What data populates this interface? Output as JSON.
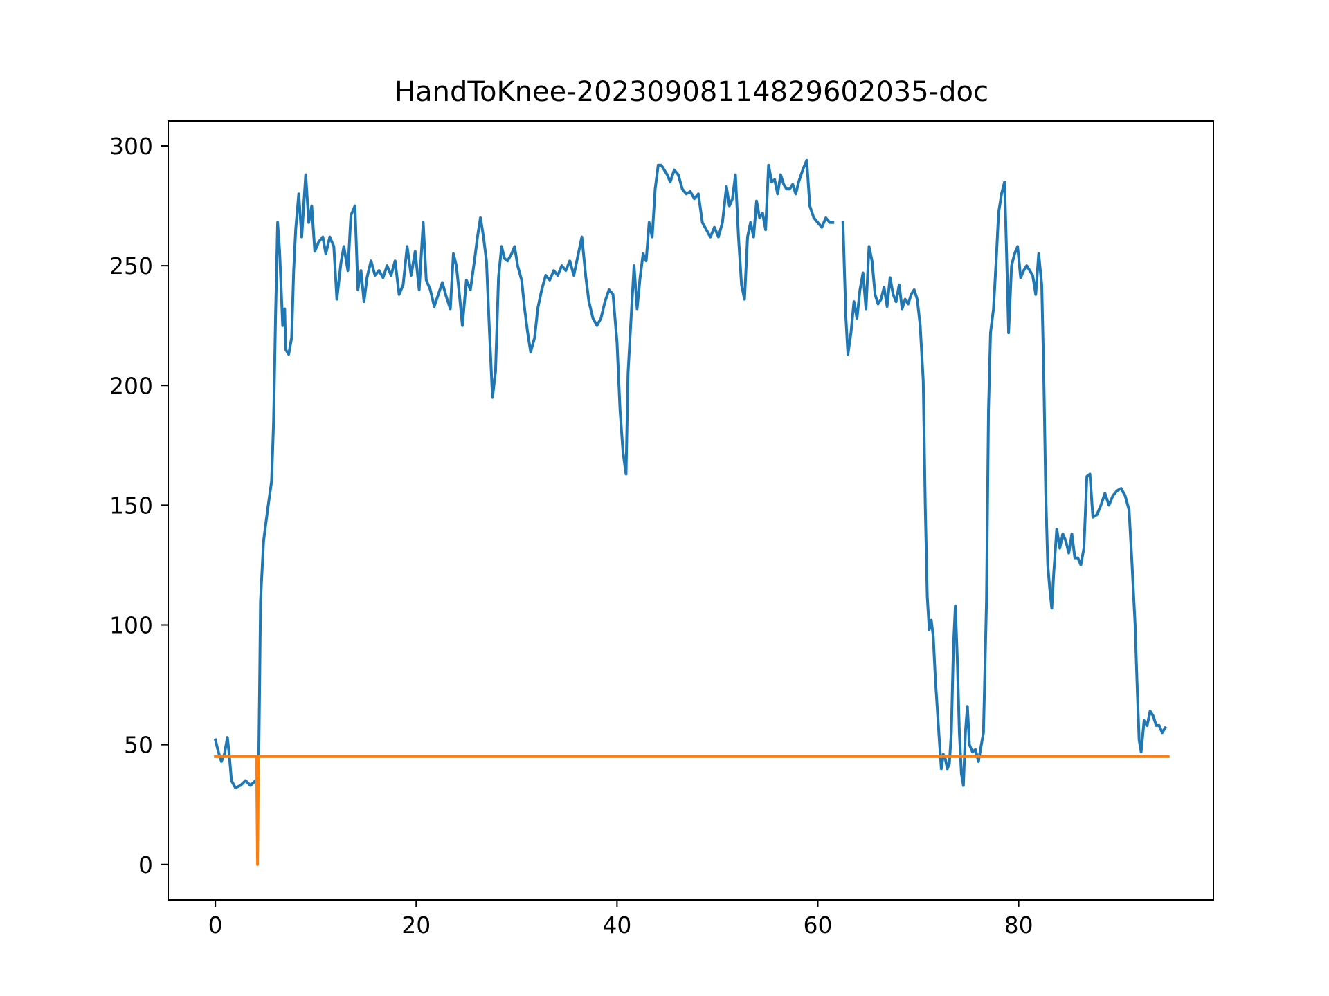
{
  "chart_data": {
    "type": "line",
    "title": "HandToKnee-20230908114829602035-doc",
    "xlabel": "",
    "ylabel": "",
    "xlim": [
      -4.7,
      99.4
    ],
    "ylim": [
      -14.8,
      310.4
    ],
    "grid": false,
    "x_ticks": [
      0,
      20,
      40,
      60,
      80
    ],
    "y_ticks": [
      0,
      50,
      100,
      150,
      200,
      250,
      300
    ],
    "series": [
      {
        "color": "#1f77b4",
        "points": [
          [
            0.0,
            52
          ],
          [
            0.3,
            47
          ],
          [
            0.6,
            43
          ],
          [
            0.9,
            46
          ],
          [
            1.2,
            53
          ],
          [
            1.4,
            45
          ],
          [
            1.6,
            35
          ],
          [
            2.0,
            32
          ],
          [
            2.5,
            33
          ],
          [
            3.0,
            35
          ],
          [
            3.5,
            33
          ],
          [
            4.0,
            35
          ],
          [
            4.3,
            36
          ],
          [
            4.4,
            72
          ],
          [
            4.5,
            110
          ],
          [
            4.8,
            135
          ],
          [
            5.2,
            148
          ],
          [
            5.6,
            160
          ],
          [
            5.8,
            185
          ],
          [
            6.0,
            230
          ],
          [
            6.2,
            268
          ],
          [
            6.4,
            256
          ],
          [
            6.7,
            225
          ],
          [
            6.9,
            232
          ],
          [
            7.0,
            215
          ],
          [
            7.3,
            213
          ],
          [
            7.6,
            220
          ],
          [
            7.8,
            248
          ],
          [
            8.0,
            265
          ],
          [
            8.3,
            280
          ],
          [
            8.6,
            262
          ],
          [
            9.0,
            288
          ],
          [
            9.3,
            268
          ],
          [
            9.6,
            275
          ],
          [
            9.9,
            256
          ],
          [
            10.3,
            260
          ],
          [
            10.7,
            262
          ],
          [
            11.0,
            255
          ],
          [
            11.4,
            262
          ],
          [
            11.8,
            258
          ],
          [
            12.1,
            236
          ],
          [
            12.5,
            251
          ],
          [
            12.8,
            258
          ],
          [
            13.2,
            248
          ],
          [
            13.5,
            271
          ],
          [
            13.9,
            275
          ],
          [
            14.2,
            240
          ],
          [
            14.5,
            248
          ],
          [
            14.8,
            235
          ],
          [
            15.1,
            245
          ],
          [
            15.5,
            252
          ],
          [
            15.9,
            246
          ],
          [
            16.3,
            248
          ],
          [
            16.7,
            245
          ],
          [
            17.1,
            250
          ],
          [
            17.5,
            246
          ],
          [
            17.9,
            252
          ],
          [
            18.3,
            238
          ],
          [
            18.7,
            242
          ],
          [
            19.1,
            258
          ],
          [
            19.5,
            246
          ],
          [
            19.9,
            256
          ],
          [
            20.3,
            240
          ],
          [
            20.7,
            268
          ],
          [
            21.0,
            244
          ],
          [
            21.4,
            240
          ],
          [
            21.8,
            233
          ],
          [
            22.2,
            238
          ],
          [
            22.6,
            243
          ],
          [
            23.0,
            237
          ],
          [
            23.4,
            232
          ],
          [
            23.7,
            255
          ],
          [
            24.0,
            250
          ],
          [
            24.3,
            238
          ],
          [
            24.6,
            225
          ],
          [
            25.0,
            244
          ],
          [
            25.4,
            240
          ],
          [
            25.8,
            252
          ],
          [
            26.1,
            262
          ],
          [
            26.4,
            270
          ],
          [
            26.7,
            262
          ],
          [
            27.0,
            252
          ],
          [
            27.3,
            222
          ],
          [
            27.6,
            195
          ],
          [
            27.9,
            206
          ],
          [
            28.2,
            245
          ],
          [
            28.5,
            258
          ],
          [
            28.8,
            253
          ],
          [
            29.1,
            252
          ],
          [
            29.5,
            255
          ],
          [
            29.8,
            258
          ],
          [
            30.1,
            250
          ],
          [
            30.5,
            244
          ],
          [
            30.8,
            232
          ],
          [
            31.1,
            222
          ],
          [
            31.4,
            214
          ],
          [
            31.8,
            220
          ],
          [
            32.1,
            232
          ],
          [
            32.5,
            240
          ],
          [
            32.9,
            246
          ],
          [
            33.3,
            244
          ],
          [
            33.7,
            248
          ],
          [
            34.1,
            246
          ],
          [
            34.5,
            250
          ],
          [
            34.9,
            248
          ],
          [
            35.3,
            252
          ],
          [
            35.7,
            246
          ],
          [
            36.1,
            254
          ],
          [
            36.5,
            262
          ],
          [
            36.9,
            245
          ],
          [
            37.2,
            235
          ],
          [
            37.6,
            228
          ],
          [
            38.0,
            225
          ],
          [
            38.4,
            228
          ],
          [
            38.8,
            235
          ],
          [
            39.2,
            240
          ],
          [
            39.6,
            238
          ],
          [
            40.0,
            218
          ],
          [
            40.3,
            190
          ],
          [
            40.6,
            172
          ],
          [
            40.9,
            163
          ],
          [
            41.1,
            205
          ],
          [
            41.4,
            228
          ],
          [
            41.7,
            250
          ],
          [
            42.0,
            232
          ],
          [
            42.3,
            245
          ],
          [
            42.6,
            255
          ],
          [
            42.9,
            252
          ],
          [
            43.2,
            268
          ],
          [
            43.5,
            262
          ],
          [
            43.8,
            282
          ],
          [
            44.1,
            292
          ],
          [
            44.4,
            292
          ],
          [
            44.7,
            290
          ],
          [
            45.0,
            288
          ],
          [
            45.3,
            285
          ],
          [
            45.7,
            290
          ],
          [
            46.1,
            288
          ],
          [
            46.5,
            282
          ],
          [
            46.9,
            280
          ],
          [
            47.3,
            281
          ],
          [
            47.7,
            278
          ],
          [
            48.1,
            280
          ],
          [
            48.5,
            268
          ],
          [
            48.9,
            265
          ],
          [
            49.3,
            262
          ],
          [
            49.7,
            266
          ],
          [
            50.1,
            262
          ],
          [
            50.5,
            268
          ],
          [
            50.9,
            283
          ],
          [
            51.2,
            275
          ],
          [
            51.5,
            278
          ],
          [
            51.8,
            288
          ],
          [
            52.1,
            262
          ],
          [
            52.4,
            242
          ],
          [
            52.7,
            236
          ],
          [
            53.0,
            262
          ],
          [
            53.3,
            268
          ],
          [
            53.6,
            262
          ],
          [
            53.9,
            277
          ],
          [
            54.2,
            270
          ],
          [
            54.5,
            272
          ],
          [
            54.8,
            265
          ],
          [
            55.1,
            292
          ],
          [
            55.4,
            285
          ],
          [
            55.7,
            286
          ],
          [
            56.0,
            280
          ],
          [
            56.3,
            288
          ],
          [
            56.6,
            284
          ],
          [
            56.9,
            282
          ],
          [
            57.2,
            282
          ],
          [
            57.5,
            284
          ],
          [
            57.8,
            280
          ],
          [
            58.1,
            285
          ],
          [
            58.5,
            290
          ],
          [
            58.9,
            294
          ],
          [
            59.2,
            275
          ],
          [
            59.6,
            270
          ],
          [
            60.0,
            268
          ],
          [
            60.4,
            266
          ],
          [
            60.8,
            270
          ],
          [
            61.2,
            268
          ],
          [
            61.5,
            268
          ]
        ]
      },
      {
        "color": "#1f77b4",
        "points": [
          [
            62.5,
            268
          ],
          [
            62.8,
            228
          ],
          [
            63.0,
            213
          ],
          [
            63.3,
            222
          ],
          [
            63.6,
            235
          ],
          [
            63.9,
            228
          ],
          [
            64.2,
            240
          ],
          [
            64.5,
            247
          ],
          [
            64.8,
            232
          ],
          [
            65.1,
            258
          ],
          [
            65.4,
            252
          ],
          [
            65.7,
            238
          ],
          [
            66.0,
            234
          ],
          [
            66.3,
            236
          ],
          [
            66.6,
            241
          ],
          [
            66.9,
            233
          ],
          [
            67.2,
            245
          ],
          [
            67.5,
            238
          ],
          [
            67.8,
            235
          ],
          [
            68.1,
            242
          ],
          [
            68.4,
            232
          ],
          [
            68.7,
            236
          ],
          [
            69.0,
            234
          ],
          [
            69.3,
            238
          ],
          [
            69.6,
            240
          ],
          [
            69.9,
            236
          ],
          [
            70.2,
            225
          ],
          [
            70.5,
            202
          ],
          [
            70.7,
            150
          ],
          [
            70.9,
            112
          ],
          [
            71.1,
            98
          ],
          [
            71.3,
            102
          ],
          [
            71.5,
            95
          ],
          [
            71.7,
            78
          ],
          [
            71.9,
            65
          ],
          [
            72.1,
            52
          ],
          [
            72.3,
            40
          ],
          [
            72.5,
            46
          ],
          [
            72.7,
            44
          ],
          [
            72.9,
            40
          ],
          [
            73.1,
            42
          ],
          [
            73.3,
            55
          ],
          [
            73.5,
            90
          ],
          [
            73.7,
            108
          ],
          [
            73.9,
            85
          ],
          [
            74.1,
            55
          ],
          [
            74.3,
            38
          ],
          [
            74.5,
            33
          ],
          [
            74.7,
            55
          ],
          [
            74.9,
            66
          ],
          [
            75.1,
            50
          ],
          [
            75.4,
            47
          ],
          [
            75.7,
            48
          ],
          [
            76.0,
            43
          ],
          [
            76.2,
            48
          ],
          [
            76.5,
            55
          ],
          [
            76.8,
            110
          ],
          [
            77.0,
            190
          ],
          [
            77.2,
            222
          ],
          [
            77.5,
            232
          ],
          [
            77.8,
            255
          ],
          [
            78.0,
            272
          ],
          [
            78.3,
            280
          ],
          [
            78.6,
            285
          ],
          [
            78.8,
            255
          ],
          [
            79.0,
            222
          ],
          [
            79.3,
            250
          ],
          [
            79.6,
            255
          ],
          [
            79.9,
            258
          ],
          [
            80.2,
            245
          ],
          [
            80.5,
            248
          ],
          [
            80.8,
            250
          ],
          [
            81.1,
            248
          ],
          [
            81.4,
            246
          ],
          [
            81.7,
            238
          ],
          [
            82.0,
            255
          ],
          [
            82.3,
            242
          ],
          [
            82.5,
            205
          ],
          [
            82.7,
            155
          ],
          [
            82.9,
            125
          ],
          [
            83.1,
            115
          ],
          [
            83.3,
            107
          ],
          [
            83.5,
            122
          ],
          [
            83.8,
            140
          ],
          [
            84.1,
            132
          ],
          [
            84.4,
            138
          ],
          [
            84.7,
            135
          ],
          [
            85.0,
            130
          ],
          [
            85.3,
            138
          ],
          [
            85.6,
            128
          ],
          [
            85.9,
            128
          ],
          [
            86.2,
            125
          ],
          [
            86.5,
            132
          ],
          [
            86.8,
            162
          ],
          [
            87.1,
            163
          ],
          [
            87.4,
            145
          ],
          [
            87.8,
            146
          ],
          [
            88.2,
            150
          ],
          [
            88.6,
            155
          ],
          [
            89.0,
            150
          ],
          [
            89.4,
            154
          ],
          [
            89.8,
            156
          ],
          [
            90.2,
            157
          ],
          [
            90.6,
            154
          ],
          [
            91.0,
            148
          ],
          [
            91.3,
            125
          ],
          [
            91.6,
            100
          ],
          [
            91.8,
            75
          ],
          [
            92.0,
            52
          ],
          [
            92.2,
            47
          ],
          [
            92.5,
            60
          ],
          [
            92.8,
            58
          ],
          [
            93.1,
            64
          ],
          [
            93.4,
            62
          ],
          [
            93.7,
            58
          ],
          [
            94.0,
            58
          ],
          [
            94.3,
            55
          ],
          [
            94.6,
            57
          ]
        ]
      },
      {
        "color": "#ff7f0e",
        "points": [
          [
            0.0,
            45
          ],
          [
            4.1,
            45
          ],
          [
            4.2,
            0
          ],
          [
            4.3,
            45
          ],
          [
            94.9,
            45
          ]
        ]
      }
    ]
  }
}
